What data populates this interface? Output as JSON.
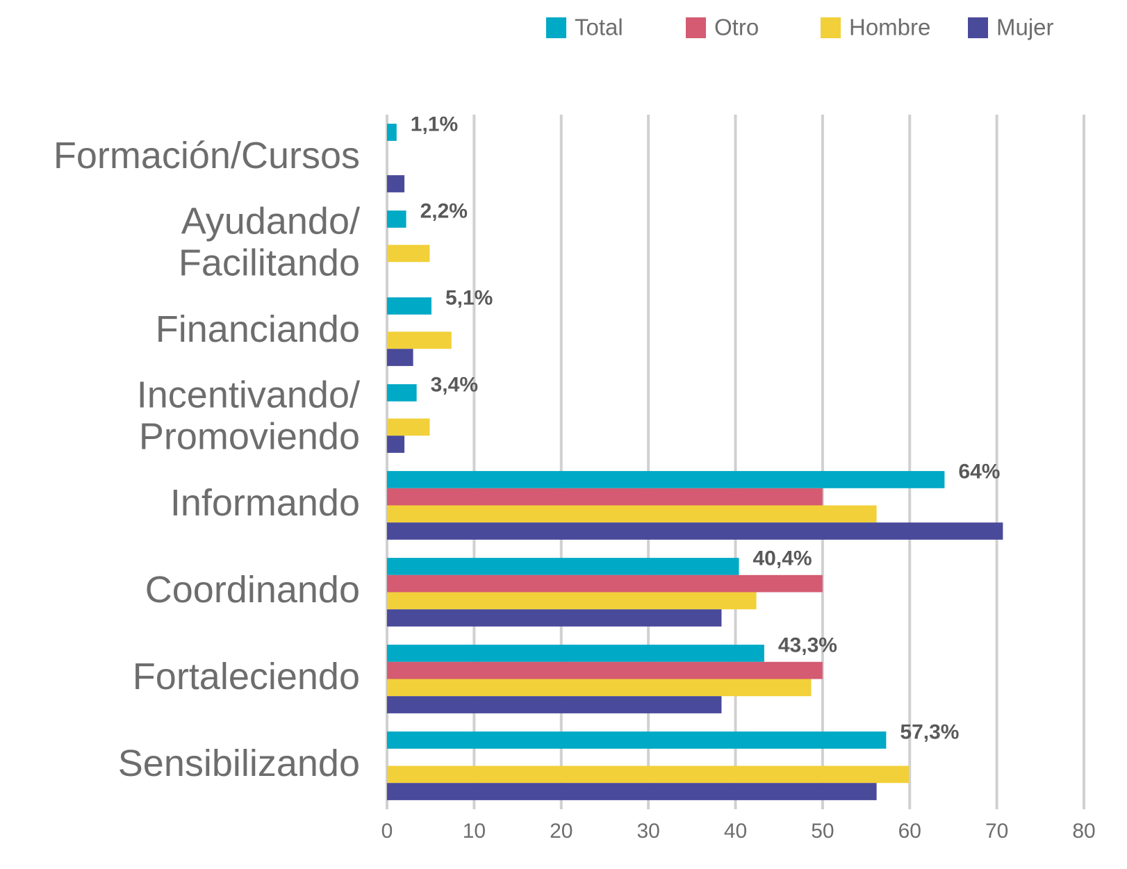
{
  "chart_data": {
    "type": "bar",
    "orientation": "horizontal",
    "categories": [
      "Formación/Cursos",
      "Ayudando/\nFacilitando",
      "Financiando",
      "Incentivando/\nPromoviendo",
      "Informando",
      "Coordinando",
      "Fortaleciendo",
      "Sensibilizando"
    ],
    "series": [
      {
        "name": "Total",
        "color": "#00a9c5",
        "values": [
          1.1,
          2.2,
          5.1,
          3.4,
          64,
          40.4,
          43.3,
          57.3
        ],
        "value_labels": [
          "1,1%",
          "2,2%",
          "5,1%",
          "3,4%",
          "64%",
          "40,4%",
          "43,3%",
          "57,3%"
        ]
      },
      {
        "name": "Otro",
        "color": "#d45b72",
        "values": [
          null,
          null,
          null,
          null,
          50,
          50,
          50,
          null
        ]
      },
      {
        "name": "Hombre",
        "color": "#f2d03a",
        "values": [
          null,
          4.9,
          7.4,
          4.9,
          56.2,
          42.4,
          48.7,
          59.9
        ]
      },
      {
        "name": "Mujer",
        "color": "#4a4a9b",
        "values": [
          2,
          null,
          3,
          2,
          70.7,
          38.4,
          38.4,
          56.2
        ]
      }
    ],
    "xlim": [
      0,
      80
    ],
    "xticks": [
      0,
      10,
      20,
      30,
      40,
      50,
      60,
      70,
      80
    ],
    "grid": true,
    "legend": "top-right"
  }
}
